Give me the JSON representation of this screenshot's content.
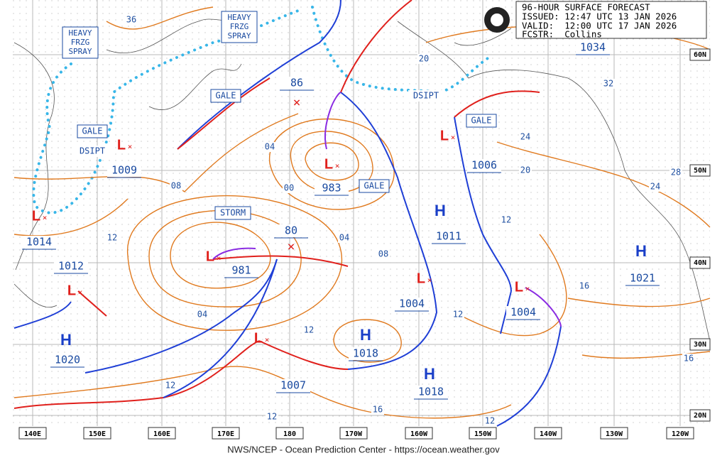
{
  "header": {
    "title": "96-HOUR SURFACE FORECAST",
    "issued": "ISSUED: 12:47 UTC 13 JAN 2026",
    "valid": "VALID:  12:00 UTC 17 JAN 2026",
    "forecaster": "FCSTR:  Collins"
  },
  "footer": "NWS/NCEP - Ocean Prediction Center - https://ocean.weather.gov",
  "longitudes": [
    "140E",
    "150E",
    "160E",
    "170E",
    "180",
    "170W",
    "160W",
    "150W",
    "140W",
    "130W",
    "120W"
  ],
  "latitudes": [
    "60N",
    "50N",
    "40N",
    "30N",
    "20N"
  ],
  "lows": [
    {
      "symbol": "L",
      "pressure": "1009"
    },
    {
      "symbol": "L",
      "pressure": "1014"
    },
    {
      "symbol": "L",
      "pressure": "1012"
    },
    {
      "symbol": "L",
      "pressure": "983"
    },
    {
      "symbol": "L",
      "pressure": "981"
    },
    {
      "symbol": "L",
      "pressure": "1007"
    },
    {
      "symbol": "L",
      "pressure": "1004"
    },
    {
      "symbol": "L",
      "pressure": "1006"
    },
    {
      "symbol": "L",
      "pressure": "1004"
    }
  ],
  "highs": [
    {
      "symbol": "H",
      "pressure": "1011"
    },
    {
      "symbol": "H",
      "pressure": "1021"
    },
    {
      "symbol": "H",
      "pressure": "1020"
    },
    {
      "symbol": "H",
      "pressure": "1018"
    },
    {
      "symbol": "H",
      "pressure": "1018"
    }
  ],
  "high_pressure_label": "1034",
  "forecast_positions": [
    "86",
    "80"
  ],
  "warnings": [
    "HEAVY FRZG SPRAY",
    "HEAVY FRZG SPRAY",
    "GALE",
    "GALE",
    "GALE",
    "GALE",
    "STORM",
    "DSIPT",
    "DSIPT"
  ],
  "isobar_labels": [
    "36",
    "20",
    "32",
    "24",
    "20",
    "28",
    "24",
    "04",
    "08",
    "00",
    "12",
    "04",
    "08",
    "12",
    "16",
    "04",
    "12",
    "12",
    "12",
    "16",
    "12",
    "12",
    "16"
  ]
}
